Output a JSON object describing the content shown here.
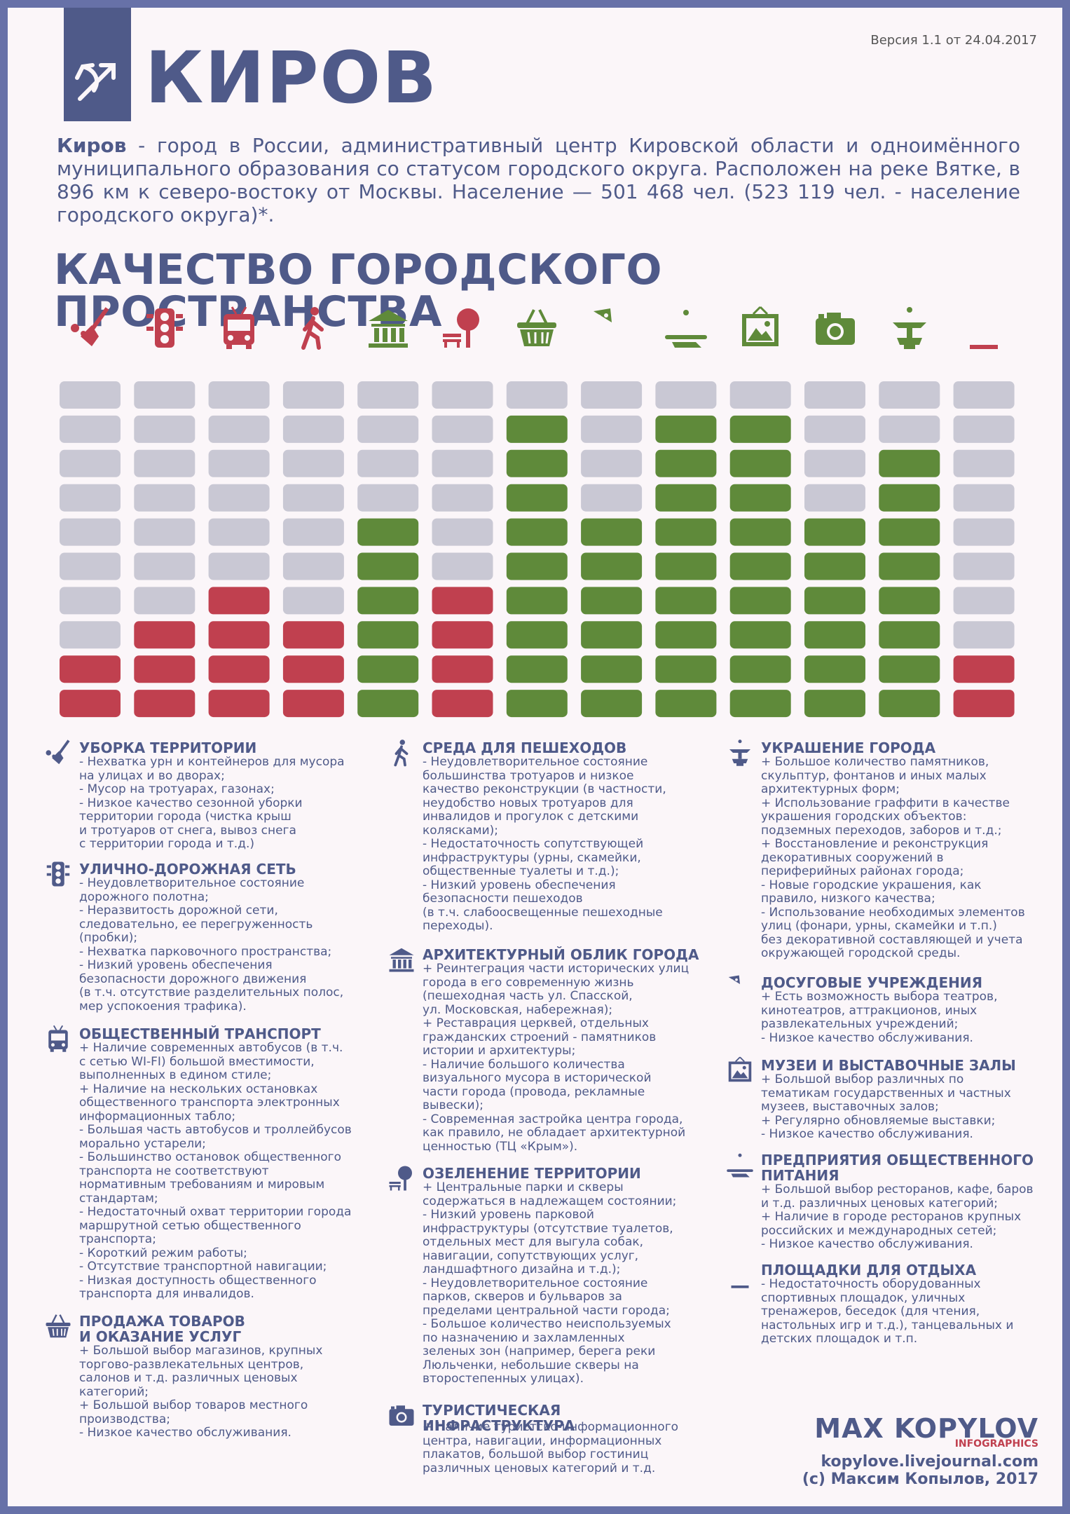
{
  "header": {
    "version": "Версия 1.1 от 24.04.2017",
    "city": "КИРОВ",
    "intro_bold": "Киров",
    "intro_text": " - город в России, административный центр Кировской области и одноимённого муниципального образования со статусом городского округа. Расположен на реке Вятке, в 896 км к северо-востоку от Москвы. Население — 501 468 чел. (523 119 чел. - население городского округа)*."
  },
  "section_title": "КАЧЕСТВО ГОРОДСКОГО ПРОСТРАНСТВА",
  "colors": {
    "bad": "#c0404f",
    "good": "#5f8a3a",
    "empty": "#c9c8d4",
    "accent": "#4f5a89"
  },
  "chart_data": {
    "type": "bar",
    "max": 10,
    "categories": [
      "УБОРКА ТЕРРИТОРИИ",
      "УЛИЧНО-ДОРОЖНАЯ СЕТЬ",
      "ОБЩЕСТВЕННЫЙ ТРАНСПОРТ",
      "СРЕДА ДЛЯ ПЕШЕХОДОВ",
      "АРХИТЕКТУРНЫЙ ОБЛИК ГОРОДА",
      "ОЗЕЛЕНЕНИЕ ТЕРРИТОРИИ",
      "ПРОДАЖА ТОВАРОВ И ОКАЗАНИЕ УСЛУГ",
      "ДОСУГОВЫЕ УЧРЕЖДЕНИЯ",
      "ПРЕДПРИЯТИЯ ОБЩЕСТВЕННОГО ПИТАНИЯ",
      "МУЗЕИ И ВЫСТАВОЧНЫЕ ЗАЛЫ",
      "ТУРИСТИЧЕСКАЯ ИНФРАСТРУКТУРА",
      "УКРАШЕНИЕ ГОРОДА",
      "ПЛОЩАДКИ ДЛЯ ОТДЫХА"
    ],
    "icons": [
      "broom-icon",
      "traffic-light-icon",
      "trolleybus-icon",
      "pedestrian-icon",
      "museum-building-icon",
      "tree-bench-icon",
      "shopping-basket-icon",
      "theatre-masks-icon",
      "cloche-icon",
      "picture-frame-icon",
      "camera-icon",
      "fountain-icon",
      "chess-knight-icon"
    ],
    "values": [
      2,
      3,
      4,
      3,
      6,
      4,
      9,
      6,
      9,
      9,
      6,
      8,
      2
    ],
    "status": [
      "bad",
      "bad",
      "bad",
      "bad",
      "good",
      "bad",
      "good",
      "good",
      "good",
      "good",
      "good",
      "good",
      "bad"
    ]
  },
  "categories": [
    {
      "title": "УБОРКА ТЕРРИТОРИИ",
      "items": [
        "- Нехватка урн и контейнеров для мусора\nна улицах и во дворах;",
        "- Мусор на тротуарах, газонах;",
        "- Низкое качество сезонной уборки\nтерритории города (чистка крыш\nи тротуаров от снега, вывоз снега\nс территории города и т.д.)"
      ]
    },
    {
      "title": "УЛИЧНО-ДОРОЖНАЯ СЕТЬ",
      "items": [
        "- Неудовлетворительное состояние\nдорожного полотна;",
        "- Неразвитость дорожной сети,\nследовательно, ее перегруженность\n(пробки);",
        "- Нехватка парковочного пространства;",
        "- Низкий уровень обеспечения\nбезопасности дорожного движения\n(в т.ч. отсутствие разделительных полос,\nмер успокоения трафика)."
      ]
    },
    {
      "title": "ОБЩЕСТВЕННЫЙ ТРАНСПОРТ",
      "items": [
        "+ Наличие современных автобусов (в т.ч.\nс сетью WI-FI) большой вместимости,\nвыполненных в едином стиле;",
        "+ Наличие на нескольких остановках\nобщественного транспорта электронных\nинформационных табло;",
        "- Большая часть автобусов и троллейбусов\nморально устарели;",
        "- Большинство остановок общественного\nтранспорта не соответствуют\nнормативным требованиям и мировым\nстандартам;",
        "- Недостаточный охват территории города\nмаршрутной сетью общественного\nтранспорта;",
        "- Короткий режим работы;",
        "- Отсутствие транспортной навигации;",
        "- Низкая доступность общественного\nтранспорта для инвалидов."
      ]
    },
    {
      "title": "ПРОДАЖА ТОВАРОВ\nИ ОКАЗАНИЕ УСЛУГ",
      "items": [
        "+ Большой выбор магазинов, крупных\nторгово-развлекательных центров,\nсалонов и т.д. различных ценовых\nкатегорий;",
        "+ Большой выбор товаров местного\nпроизводства;",
        "- Низкое качество обслуживания."
      ]
    },
    {
      "title": "СРЕДА ДЛЯ ПЕШЕХОДОВ",
      "items": [
        "- Неудовлетворительное состояние\nбольшинства тротуаров и низкое\nкачество реконструкции (в частности,\nнеудобство новых тротуаров для\nинвалидов и прогулок с детскими\nколясками);",
        "- Недостаточность сопутствующей\nинфраструктуры (урны, скамейки,\nобщественные туалеты и т.д.);",
        "- Низкий уровень обеспечения\nбезопасности пешеходов\n(в т.ч. слабоосвещенные пешеходные\nпереходы)."
      ]
    },
    {
      "title": "АРХИТЕКТУРНЫЙ ОБЛИК ГОРОДА",
      "items": [
        "+ Реинтеграция части исторических улиц\nгорода в его современную жизнь\n(пешеходная часть ул. Спасской,\nул. Московская, набережная);",
        "+ Реставрация церквей, отдельных\nгражданских строений - памятников\nистории и архитектуры;",
        "- Наличие большого количества\nвизуального мусора в исторической\nчасти города (провода, рекламные\nвывески);",
        "- Современная застройка центра города,\nкак правило, не обладает архитектурной\nценностью (ТЦ «Крым»)."
      ]
    },
    {
      "title": "ОЗЕЛЕНЕНИЕ ТЕРРИТОРИИ",
      "items": [
        "+ Центральные парки и скверы\nсодержаться в надлежащем состоянии;",
        "- Низкий уровень парковой\nинфраструктуры (отсутствие туалетов,\nотдельных мест для выгула собак,\nнавигации, сопутствующих услуг,\nландшафтного дизайна и т.д.);",
        "- Неудовлетворительное состояние\nпарков, скверов и бульваров за\nпределами центральной части города;",
        "- Большое количество неиспользуемых\nпо назначению и захламленных\nзеленых зон (например, берега реки\nЛюльченки, небольшие скверы на\nвторостепенных улицах)."
      ]
    },
    {
      "title": "ТУРИСТИЧЕСКАЯ ИНФРАСТРУКТУРА",
      "items": [
        "+ Наличие туристско-информационного\nцентра, навигации, информационных\nплакатов, большой выбор гостиниц\nразличных ценовых категорий и т.д."
      ]
    },
    {
      "title": "УКРАШЕНИЕ ГОРОДА",
      "items": [
        "+ Большое количество памятников,\nскульптур, фонтанов и иных малых\nархитектурных форм;",
        "+ Использование граффити в качестве\nукрашения городских объектов:\nподземных переходов, заборов и т.д.;",
        "+ Восстановление и реконструкция\nдекоративных сооружений в\nпериферийных районах города;",
        "- Новые городские украшения, как\nправило, низкого качества;",
        "- Использование необходимых элементов\nулиц (фонари, урны, скамейки и т.п.)\nбез декоративной составляющей и учета\nокружающей городской среды."
      ]
    },
    {
      "title": "ДОСУГОВЫЕ УЧРЕЖДЕНИЯ",
      "items": [
        "+ Есть возможность выбора театров,\nкинотеатров, аттракционов, иных\nразвлекательных учреждений;",
        "- Низкое качество обслуживания."
      ]
    },
    {
      "title": "МУЗЕИ И ВЫСТАВОЧНЫЕ ЗАЛЫ",
      "items": [
        "+ Большой выбор различных по\nтематикам государственных и частных\nмузеев, выставочных залов;",
        "+ Регулярно обновляемые выставки;",
        "- Низкое качество обслуживания."
      ]
    },
    {
      "title": "ПРЕДПРИЯТИЯ ОБЩЕСТВЕННОГО\nПИТАНИЯ",
      "items": [
        "+ Большой выбор ресторанов, кафе, баров\nи т.д. различных ценовых категорий;",
        "+ Наличие в городе ресторанов крупных\nроссийских и международных сетей;",
        "- Низкое качество обслуживания."
      ]
    },
    {
      "title": "ПЛОЩАДКИ ДЛЯ ОТДЫХА",
      "items": [
        "- Недостаточность оборудованных\nспортивных площадок, уличных\nтренажеров, беседок (для чтения,\nнастольных игр и т.д.), танцевальных и\nдетских площадок и т.п."
      ]
    }
  ],
  "author": {
    "name": "MAX KOPYLOV",
    "subtitle": "INFOGRAPHICS",
    "url": "kopylove.livejournal.com",
    "copyright": "(c) Максим Копылов, 2017"
  }
}
